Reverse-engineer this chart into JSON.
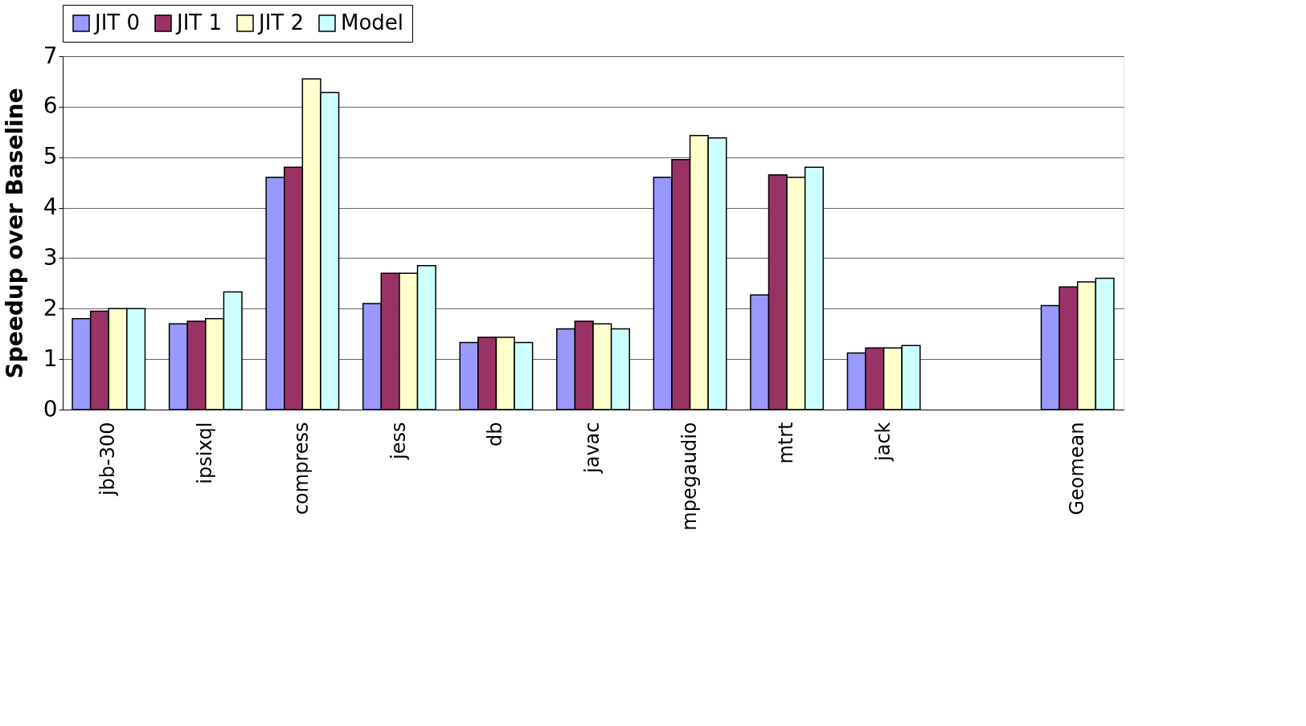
{
  "chart_data": {
    "type": "bar",
    "ylabel": "Speedup over Baseline",
    "categories": [
      "jbb-300",
      "ipsixql",
      "compress",
      "jess",
      "db",
      "javac",
      "mpegaudio",
      "mtrt",
      "jack",
      null,
      "Geomean"
    ],
    "series": [
      {
        "name": "JIT 0",
        "color": "#9999ff",
        "values": [
          1.8,
          1.7,
          4.6,
          2.1,
          1.33,
          1.6,
          4.6,
          2.27,
          1.12,
          null,
          2.06
        ]
      },
      {
        "name": "JIT 1",
        "color": "#993366",
        "values": [
          1.95,
          1.75,
          4.8,
          2.7,
          1.43,
          1.75,
          4.95,
          4.65,
          1.22,
          null,
          2.43
        ]
      },
      {
        "name": "JIT 2",
        "color": "#ffffcc",
        "values": [
          2.0,
          1.8,
          6.55,
          2.7,
          1.43,
          1.7,
          5.43,
          4.6,
          1.22,
          null,
          2.53
        ]
      },
      {
        "name": "Model",
        "color": "#ccffff",
        "values": [
          2.0,
          2.33,
          6.28,
          2.85,
          1.33,
          1.6,
          5.38,
          4.8,
          1.27,
          null,
          2.6
        ]
      }
    ],
    "ylim": [
      0,
      7
    ],
    "yticks": [
      0,
      1,
      2,
      3,
      4,
      5,
      6,
      7
    ],
    "grid": "y",
    "legend": "top"
  }
}
